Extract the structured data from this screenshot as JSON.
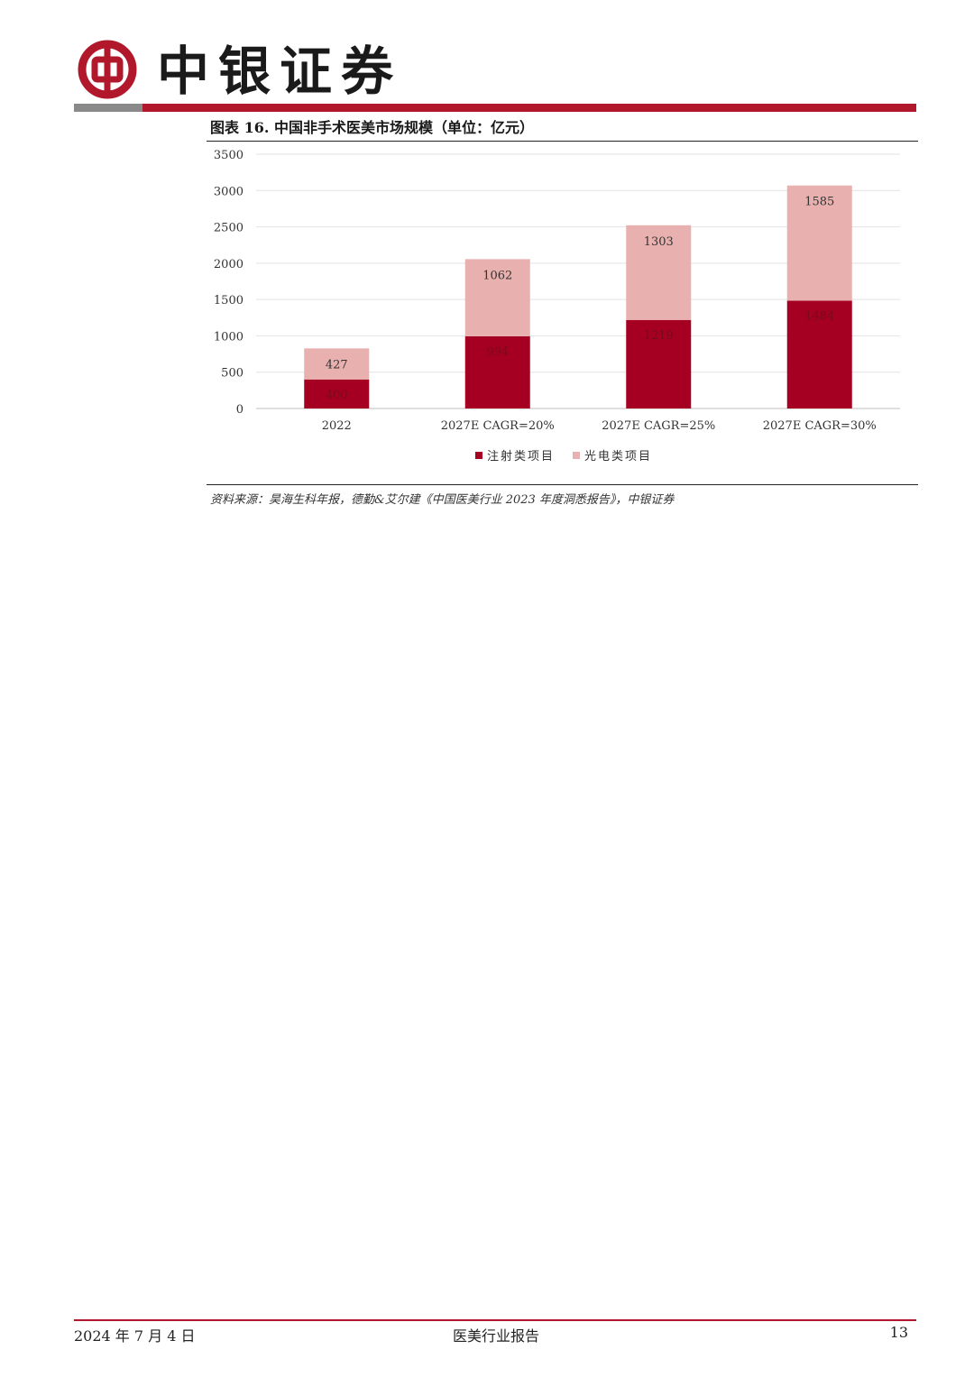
{
  "header": {
    "brand_name": "中银证券",
    "colors": {
      "brand_red": "#b2182b",
      "bar_grey": "#8a8a8a"
    }
  },
  "figure": {
    "title": "图表 16. 中国非手术医美市场规模（单位：亿元）",
    "source": "资料来源：昊海生科年报，德勤&艾尔建《中国医美行业 2023 年度洞悉报告》，中银证券"
  },
  "chart_data": {
    "type": "bar",
    "stacked": true,
    "categories": [
      "2022",
      "2027E CAGR=20%",
      "2027E CAGR=25%",
      "2027E CAGR=30%"
    ],
    "series": [
      {
        "name": "注射类项目",
        "values": [
          400,
          994,
          1219,
          1484
        ],
        "color": "#a50021"
      },
      {
        "name": "光电类项目",
        "values": [
          427,
          1062,
          1303,
          1585
        ],
        "color": "#e8b0ae"
      }
    ],
    "ylim": [
      0,
      3500
    ],
    "yticks": [
      0,
      500,
      1000,
      1500,
      2000,
      2500,
      3000,
      3500
    ],
    "grid": true,
    "legend_position": "bottom"
  },
  "footer": {
    "date": "2024 年 7 月 4 日",
    "title": "医美行业报告",
    "page": "13"
  }
}
